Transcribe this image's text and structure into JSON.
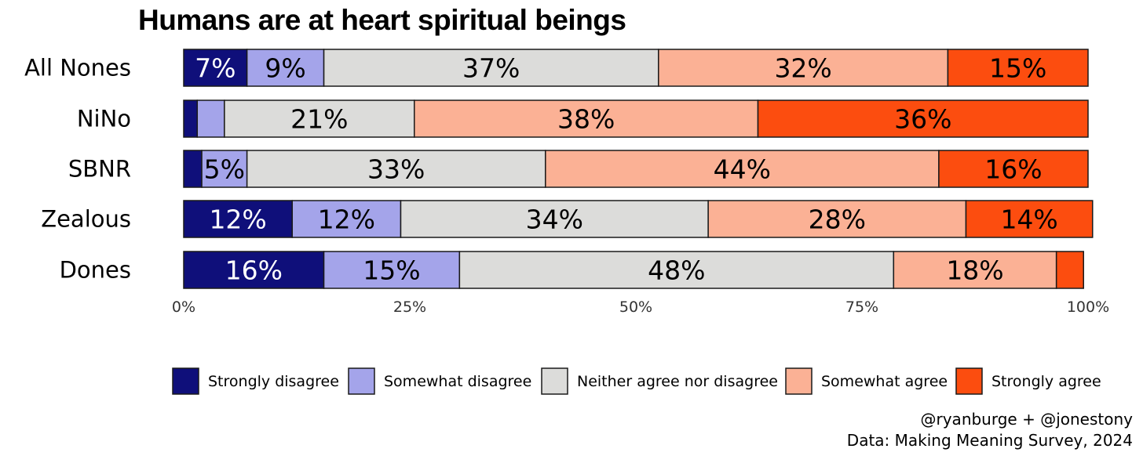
{
  "chart_data": {
    "type": "bar",
    "orientation": "horizontal",
    "stacked": true,
    "title": "Humans are at heart spiritual beings",
    "categories": [
      "All Nones",
      "NiNo",
      "SBNR",
      "Zealous",
      "Dones"
    ],
    "series": [
      {
        "name": "Strongly disagree",
        "color": "#0f0f7a",
        "label_color": "#ffffff",
        "values": [
          7,
          1.5,
          2,
          12,
          15.5
        ],
        "labels": [
          "7%",
          "",
          "",
          "12%",
          "16%"
        ]
      },
      {
        "name": "Somewhat disagree",
        "color": "#a4a4ea",
        "label_color": "#000000",
        "values": [
          8.5,
          3,
          5,
          12,
          15
        ],
        "labels": [
          "9%",
          "",
          "5%",
          "12%",
          "15%"
        ]
      },
      {
        "name": "Neither agree nor disagree",
        "color": "#dcdcda",
        "label_color": "#000000",
        "values": [
          37,
          21,
          33,
          34,
          48
        ],
        "labels": [
          "37%",
          "21%",
          "33%",
          "34%",
          "48%"
        ]
      },
      {
        "name": "Somewhat agree",
        "color": "#fbb195",
        "label_color": "#000000",
        "values": [
          32,
          38,
          43.5,
          28.5,
          18
        ],
        "labels": [
          "32%",
          "38%",
          "44%",
          "28%",
          "18%"
        ]
      },
      {
        "name": "Strongly agree",
        "color": "#fc4d0f",
        "label_color": "#000000",
        "values": [
          15.5,
          36.5,
          16.5,
          14,
          3
        ],
        "labels": [
          "15%",
          "36%",
          "16%",
          "14%",
          ""
        ]
      }
    ],
    "xlim": [
      0,
      100
    ],
    "xticks": [
      {
        "value": 0,
        "label": "0%"
      },
      {
        "value": 25,
        "label": "25%"
      },
      {
        "value": 50,
        "label": "50%"
      },
      {
        "value": 75,
        "label": "75%"
      },
      {
        "value": 100,
        "label": "100%"
      }
    ],
    "grid": false,
    "legend_position": "bottom",
    "caption_lines": [
      "@ryanburge + @jonestony",
      "Data: Making Meaning Survey, 2024"
    ]
  }
}
